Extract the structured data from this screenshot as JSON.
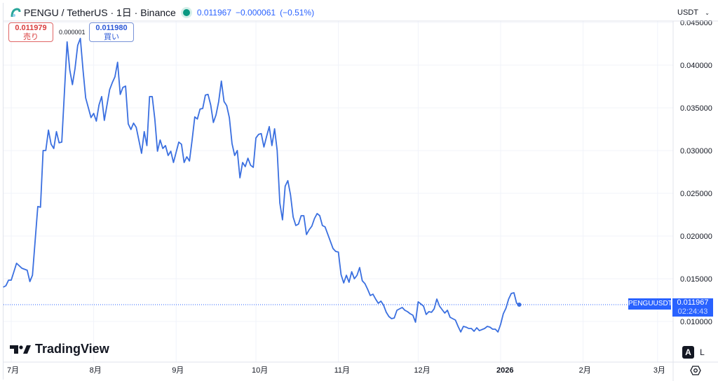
{
  "header": {
    "symbol_title": "PENGU / TetherUS · 1日 · Binance",
    "last_price": "0.011967",
    "change": "−0.000061",
    "change_pct": "(−0.51%)",
    "market_status_color": "#089981"
  },
  "trade": {
    "sell_price": "0.011979",
    "sell_label": "売り",
    "spread": "0.000001",
    "buy_price": "0.011980",
    "buy_label": "買い"
  },
  "currency_selector": {
    "value": "USDT",
    "icon": "chevron-down-icon"
  },
  "price_label": {
    "symbol": "PENGUUSDT",
    "price": "0.011967",
    "countdown": "02:24:43"
  },
  "branding": {
    "logo_text": "TradingView"
  },
  "scale_buttons": {
    "auto": "A",
    "log": "L"
  },
  "settings_icon": "gear-icon",
  "chart_data": {
    "type": "line",
    "color": "#3a6fe0",
    "y_ticks": [
      "0.045000",
      "0.040000",
      "0.035000",
      "0.030000",
      "0.025000",
      "0.020000",
      "0.015000",
      "0.010000"
    ],
    "y_tick_values": [
      0.045,
      0.04,
      0.035,
      0.03,
      0.025,
      0.02,
      0.015,
      0.01
    ],
    "x_ticks": [
      {
        "label": "7月",
        "date": "2025-07-01"
      },
      {
        "label": "8月",
        "date": "2025-08-01"
      },
      {
        "label": "9月",
        "date": "2025-09-01"
      },
      {
        "label": "10月",
        "date": "2025-10-01"
      },
      {
        "label": "11月",
        "date": "2025-11-01"
      },
      {
        "label": "12月",
        "date": "2025-12-01"
      },
      {
        "label": "2026",
        "date": "2026-01-01",
        "bold": true
      },
      {
        "label": "2月",
        "date": "2026-02-01"
      },
      {
        "label": "3月",
        "date": "2026-03-01"
      }
    ],
    "grid": true,
    "last_value": 0.011967,
    "points": [
      [
        "2025-06-28",
        0.01402
      ],
      [
        "2025-06-29",
        0.01418
      ],
      [
        "2025-06-30",
        0.01484
      ],
      [
        "2025-07-01",
        0.01484
      ],
      [
        "2025-07-02",
        0.01582
      ],
      [
        "2025-07-03",
        0.01681
      ],
      [
        "2025-07-05",
        0.01623
      ],
      [
        "2025-07-07",
        0.01599
      ],
      [
        "2025-07-08",
        0.01467
      ],
      [
        "2025-07-09",
        0.01541
      ],
      [
        "2025-07-11",
        0.02345
      ],
      [
        "2025-07-12",
        0.02337
      ],
      [
        "2025-07-13",
        0.03001
      ],
      [
        "2025-07-14",
        0.03001
      ],
      [
        "2025-07-15",
        0.03239
      ],
      [
        "2025-07-16",
        0.03075
      ],
      [
        "2025-07-17",
        0.03025
      ],
      [
        "2025-07-18",
        0.03222
      ],
      [
        "2025-07-19",
        0.03091
      ],
      [
        "2025-07-20",
        0.03099
      ],
      [
        "2025-07-22",
        0.04272
      ],
      [
        "2025-07-23",
        0.03944
      ],
      [
        "2025-07-24",
        0.03772
      ],
      [
        "2025-07-25",
        0.0396
      ],
      [
        "2025-07-26",
        0.04231
      ],
      [
        "2025-07-27",
        0.04313
      ],
      [
        "2025-07-28",
        0.03944
      ],
      [
        "2025-07-29",
        0.03616
      ],
      [
        "2025-07-31",
        0.03386
      ],
      [
        "2025-08-01",
        0.03435
      ],
      [
        "2025-08-02",
        0.03345
      ],
      [
        "2025-08-03",
        0.03534
      ],
      [
        "2025-08-04",
        0.03632
      ],
      [
        "2025-08-05",
        0.03353
      ],
      [
        "2025-08-07",
        0.03714
      ],
      [
        "2025-08-08",
        0.03796
      ],
      [
        "2025-08-09",
        0.03862
      ],
      [
        "2025-08-10",
        0.04034
      ],
      [
        "2025-08-11",
        0.03657
      ],
      [
        "2025-08-12",
        0.03739
      ],
      [
        "2025-08-13",
        0.03755
      ],
      [
        "2025-08-14",
        0.03312
      ],
      [
        "2025-08-15",
        0.03247
      ],
      [
        "2025-08-16",
        0.03321
      ],
      [
        "2025-08-17",
        0.03271
      ],
      [
        "2025-08-19",
        0.02968
      ],
      [
        "2025-08-20",
        0.03222
      ],
      [
        "2025-08-21",
        0.03058
      ],
      [
        "2025-08-22",
        0.03632
      ],
      [
        "2025-08-23",
        0.03632
      ],
      [
        "2025-08-24",
        0.0337
      ],
      [
        "2025-08-25",
        0.02993
      ],
      [
        "2025-08-26",
        0.03124
      ],
      [
        "2025-08-27",
        0.03025
      ],
      [
        "2025-08-28",
        0.03058
      ],
      [
        "2025-08-29",
        0.02943
      ],
      [
        "2025-08-30",
        0.02993
      ],
      [
        "2025-08-31",
        0.02861
      ],
      [
        "2025-09-02",
        0.03099
      ],
      [
        "2025-09-03",
        0.03075
      ],
      [
        "2025-09-04",
        0.02861
      ],
      [
        "2025-09-05",
        0.02927
      ],
      [
        "2025-09-06",
        0.02878
      ],
      [
        "2025-09-07",
        0.03124
      ],
      [
        "2025-09-08",
        0.03394
      ],
      [
        "2025-09-09",
        0.0337
      ],
      [
        "2025-09-10",
        0.03485
      ],
      [
        "2025-09-11",
        0.03493
      ],
      [
        "2025-09-12",
        0.03649
      ],
      [
        "2025-09-13",
        0.03657
      ],
      [
        "2025-09-14",
        0.03534
      ],
      [
        "2025-09-15",
        0.03329
      ],
      [
        "2025-09-16",
        0.03419
      ],
      [
        "2025-09-17",
        0.03575
      ],
      [
        "2025-09-18",
        0.03813
      ],
      [
        "2025-09-19",
        0.03575
      ],
      [
        "2025-09-20",
        0.03526
      ],
      [
        "2025-09-21",
        0.03386
      ],
      [
        "2025-09-22",
        0.03083
      ],
      [
        "2025-09-23",
        0.02943
      ],
      [
        "2025-09-24",
        0.03001
      ],
      [
        "2025-09-25",
        0.02681
      ],
      [
        "2025-09-26",
        0.02861
      ],
      [
        "2025-09-27",
        0.02812
      ],
      [
        "2025-09-28",
        0.02911
      ],
      [
        "2025-09-29",
        0.02829
      ],
      [
        "2025-09-30",
        0.02804
      ],
      [
        "2025-10-01",
        0.03148
      ],
      [
        "2025-10-02",
        0.03189
      ],
      [
        "2025-10-03",
        0.03198
      ],
      [
        "2025-10-04",
        0.03042
      ],
      [
        "2025-10-05",
        0.03165
      ],
      [
        "2025-10-06",
        0.0328
      ],
      [
        "2025-10-07",
        0.03058
      ],
      [
        "2025-10-08",
        0.03255
      ],
      [
        "2025-10-09",
        0.03001
      ],
      [
        "2025-10-10",
        0.02386
      ],
      [
        "2025-10-11",
        0.02189
      ],
      [
        "2025-10-12",
        0.02583
      ],
      [
        "2025-10-13",
        0.02648
      ],
      [
        "2025-10-14",
        0.02484
      ],
      [
        "2025-10-15",
        0.02222
      ],
      [
        "2025-10-16",
        0.02123
      ],
      [
        "2025-10-17",
        0.0214
      ],
      [
        "2025-10-18",
        0.02238
      ],
      [
        "2025-10-19",
        0.02238
      ],
      [
        "2025-10-20",
        0.02017
      ],
      [
        "2025-10-21",
        0.02074
      ],
      [
        "2025-10-22",
        0.02115
      ],
      [
        "2025-10-23",
        0.02205
      ],
      [
        "2025-10-24",
        0.02263
      ],
      [
        "2025-10-25",
        0.02238
      ],
      [
        "2025-10-26",
        0.02123
      ],
      [
        "2025-10-27",
        0.02107
      ],
      [
        "2025-10-30",
        0.01853
      ],
      [
        "2025-10-31",
        0.0182
      ],
      [
        "2025-11-01",
        0.01812
      ],
      [
        "2025-11-02",
        0.01549
      ],
      [
        "2025-11-03",
        0.01451
      ],
      [
        "2025-11-04",
        0.01541
      ],
      [
        "2025-11-05",
        0.01459
      ],
      [
        "2025-11-06",
        0.01582
      ],
      [
        "2025-11-07",
        0.015
      ],
      [
        "2025-11-08",
        0.01541
      ],
      [
        "2025-11-09",
        0.01631
      ],
      [
        "2025-11-10",
        0.01476
      ],
      [
        "2025-11-11",
        0.01443
      ],
      [
        "2025-11-12",
        0.01377
      ],
      [
        "2025-11-13",
        0.01303
      ],
      [
        "2025-11-14",
        0.0132
      ],
      [
        "2025-11-15",
        0.01262
      ],
      [
        "2025-11-16",
        0.01213
      ],
      [
        "2025-11-17",
        0.01238
      ],
      [
        "2025-11-18",
        0.01189
      ],
      [
        "2025-11-19",
        0.01107
      ],
      [
        "2025-11-20",
        0.01057
      ],
      [
        "2025-11-21",
        0.01033
      ],
      [
        "2025-11-22",
        0.01041
      ],
      [
        "2025-11-23",
        0.01131
      ],
      [
        "2025-11-25",
        0.01164
      ],
      [
        "2025-11-26",
        0.01131
      ],
      [
        "2025-11-27",
        0.01115
      ],
      [
        "2025-11-28",
        0.0109
      ],
      [
        "2025-11-29",
        0.01074
      ],
      [
        "2025-11-30",
        0.00992
      ],
      [
        "2025-12-01",
        0.0123
      ],
      [
        "2025-12-03",
        0.0118
      ],
      [
        "2025-12-04",
        0.01082
      ],
      [
        "2025-12-05",
        0.01115
      ],
      [
        "2025-12-06",
        0.01107
      ],
      [
        "2025-12-07",
        0.01148
      ],
      [
        "2025-12-08",
        0.01262
      ],
      [
        "2025-12-09",
        0.0118
      ],
      [
        "2025-12-10",
        0.01139
      ],
      [
        "2025-12-11",
        0.01098
      ],
      [
        "2025-12-12",
        0.01131
      ],
      [
        "2025-12-13",
        0.01049
      ],
      [
        "2025-12-14",
        0.01033
      ],
      [
        "2025-12-15",
        0.01016
      ],
      [
        "2025-12-16",
        0.00943
      ],
      [
        "2025-12-17",
        0.00877
      ],
      [
        "2025-12-18",
        0.00943
      ],
      [
        "2025-12-19",
        0.00934
      ],
      [
        "2025-12-20",
        0.00918
      ],
      [
        "2025-12-21",
        0.00918
      ],
      [
        "2025-12-22",
        0.00885
      ],
      [
        "2025-12-23",
        0.00926
      ],
      [
        "2025-12-24",
        0.00893
      ],
      [
        "2025-12-26",
        0.00918
      ],
      [
        "2025-12-27",
        0.00943
      ],
      [
        "2025-12-28",
        0.00934
      ],
      [
        "2025-12-29",
        0.0091
      ],
      [
        "2025-12-30",
        0.0091
      ],
      [
        "2025-12-31",
        0.00877
      ],
      [
        "2026-01-01",
        0.00967
      ],
      [
        "2026-01-02",
        0.0109
      ],
      [
        "2026-01-03",
        0.01156
      ],
      [
        "2026-01-04",
        0.01262
      ],
      [
        "2026-01-05",
        0.01328
      ],
      [
        "2026-01-06",
        0.01336
      ],
      [
        "2026-01-07",
        0.01213
      ],
      [
        "2026-01-08",
        0.011967
      ]
    ]
  }
}
